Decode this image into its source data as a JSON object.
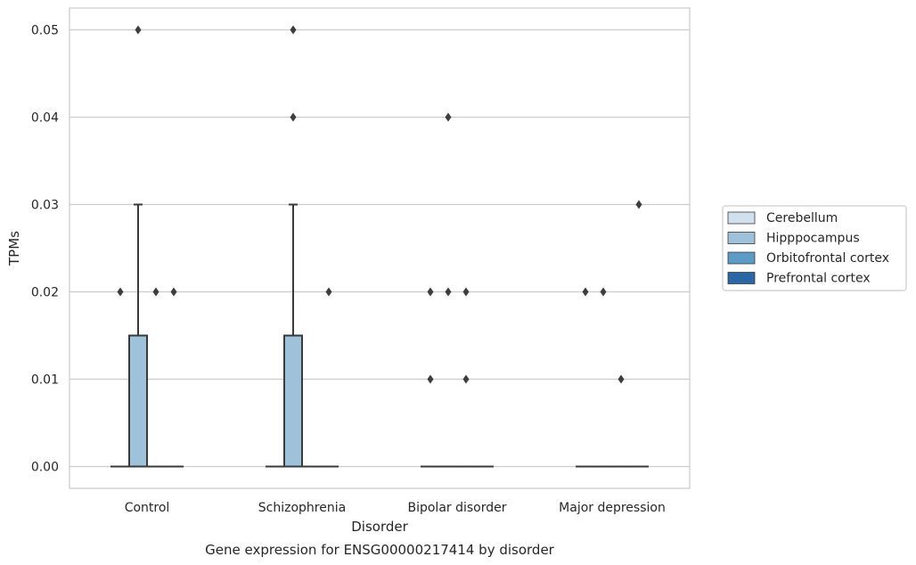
{
  "chart_data": {
    "type": "box",
    "title": "",
    "caption": "Gene expression for ENSG00000217414 by disorder",
    "xlabel": "Disorder",
    "ylabel": "TPMs",
    "ylim": [
      -0.0025,
      0.0525
    ],
    "yticks": [
      0.0,
      0.01,
      0.02,
      0.03,
      0.04,
      0.05
    ],
    "ytick_labels": [
      "0.00",
      "0.01",
      "0.02",
      "0.03",
      "0.04",
      "0.05"
    ],
    "grid": "horizontal",
    "legend_position": "right",
    "categories": [
      "Control",
      "Schizophrenia",
      "Bipolar disorder",
      "Major depression"
    ],
    "series": [
      {
        "name": "Cerebellum",
        "color": "#d1e0ee",
        "boxes": [
          {
            "q1": 0,
            "median": 0,
            "q3": 0,
            "whisker_low": 0,
            "whisker_high": 0,
            "outliers": [
              0.02
            ]
          },
          {
            "q1": 0,
            "median": 0,
            "q3": 0,
            "whisker_low": 0,
            "whisker_high": 0,
            "outliers": []
          },
          {
            "q1": 0,
            "median": 0,
            "q3": 0,
            "whisker_low": 0,
            "whisker_high": 0,
            "outliers": [
              0.02,
              0.01
            ]
          },
          {
            "q1": 0,
            "median": 0,
            "q3": 0,
            "whisker_low": 0,
            "whisker_high": 0,
            "outliers": [
              0.02
            ]
          }
        ]
      },
      {
        "name": "Hipppocampus",
        "color": "#9dc2da",
        "boxes": [
          {
            "q1": 0,
            "median": 0,
            "q3": 0.015,
            "whisker_low": 0,
            "whisker_high": 0.03,
            "outliers": [
              0.05
            ]
          },
          {
            "q1": 0,
            "median": 0,
            "q3": 0.015,
            "whisker_low": 0,
            "whisker_high": 0.03,
            "outliers": [
              0.05,
              0.04
            ]
          },
          {
            "q1": 0,
            "median": 0,
            "q3": 0,
            "whisker_low": 0,
            "whisker_high": 0,
            "outliers": [
              0.04,
              0.02
            ]
          },
          {
            "q1": 0,
            "median": 0,
            "q3": 0,
            "whisker_low": 0,
            "whisker_high": 0,
            "outliers": [
              0.02
            ]
          }
        ]
      },
      {
        "name": "Orbitofrontal cortex",
        "color": "#5a9bc8",
        "boxes": [
          {
            "q1": 0,
            "median": 0,
            "q3": 0,
            "whisker_low": 0,
            "whisker_high": 0,
            "outliers": [
              0.02
            ]
          },
          {
            "q1": 0,
            "median": 0,
            "q3": 0,
            "whisker_low": 0,
            "whisker_high": 0,
            "outliers": []
          },
          {
            "q1": 0,
            "median": 0,
            "q3": 0,
            "whisker_low": 0,
            "whisker_high": 0,
            "outliers": [
              0.02,
              0.01
            ]
          },
          {
            "q1": 0,
            "median": 0,
            "q3": 0,
            "whisker_low": 0,
            "whisker_high": 0,
            "outliers": [
              0.01
            ]
          }
        ]
      },
      {
        "name": "Prefrontal cortex",
        "color": "#2868a7",
        "boxes": [
          {
            "q1": 0,
            "median": 0,
            "q3": 0,
            "whisker_low": 0,
            "whisker_high": 0,
            "outliers": [
              0.02
            ]
          },
          {
            "q1": 0,
            "median": 0,
            "q3": 0,
            "whisker_low": 0,
            "whisker_high": 0,
            "outliers": [
              0.02
            ]
          },
          {
            "q1": 0,
            "median": 0,
            "q3": 0,
            "whisker_low": 0,
            "whisker_high": 0,
            "outliers": []
          },
          {
            "q1": 0,
            "median": 0,
            "q3": 0,
            "whisker_low": 0,
            "whisker_high": 0,
            "outliers": [
              0.03
            ]
          }
        ]
      }
    ]
  }
}
